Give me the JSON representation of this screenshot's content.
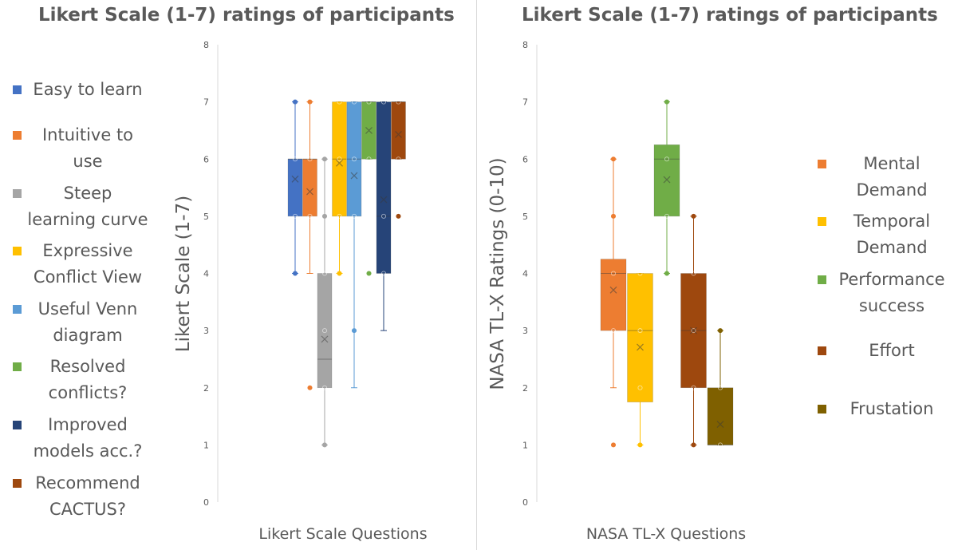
{
  "chart_data": [
    {
      "type": "box",
      "title": "Likert Scale (1-7) ratings of participants",
      "xlabel": "Likert Scale Questions",
      "ylabel": "Likert Scale (1-7)",
      "ylim": [
        0,
        8
      ],
      "yticks": [
        "0",
        "1",
        "2",
        "3",
        "4",
        "5",
        "6",
        "7",
        "8"
      ],
      "legend_position": "left",
      "series": [
        {
          "name": "Easy to learn",
          "color": "#4472C4",
          "q1": 5,
          "median": 6,
          "q3": 6,
          "whisker_low": 4,
          "whisker_high": 7,
          "mean": 5.65,
          "points": [
            4,
            5,
            6,
            7
          ]
        },
        {
          "name": "Intuitive to use",
          "color": "#ED7D31",
          "q1": 5,
          "median": 6,
          "q3": 6,
          "whisker_low": 4,
          "whisker_high": 7,
          "mean": 5.43,
          "points": [
            2,
            5,
            6,
            7
          ]
        },
        {
          "name": "Steep learning curve",
          "color": "#A5A5A5",
          "q1": 2,
          "median": 2.5,
          "q3": 4,
          "whisker_low": 1,
          "whisker_high": 6,
          "mean": 2.85,
          "points": [
            1,
            2,
            3,
            4,
            5,
            6
          ]
        },
        {
          "name": "Expressive Conflict View",
          "color": "#FFC000",
          "q1": 5,
          "median": 6,
          "q3": 7,
          "whisker_low": 4,
          "whisker_high": 7,
          "mean": 5.93,
          "points": [
            4,
            5,
            6,
            7
          ]
        },
        {
          "name": "Useful Venn diagram",
          "color": "#5B9BD5",
          "q1": 5,
          "median": 6,
          "q3": 7,
          "whisker_low": 2,
          "whisker_high": 7,
          "mean": 5.71,
          "points": [
            3,
            5,
            6,
            7
          ]
        },
        {
          "name": "Resolved conflicts?",
          "color": "#70AD47",
          "q1": 6,
          "median": 7,
          "q3": 7,
          "whisker_low": 6,
          "whisker_high": 7,
          "mean": 6.5,
          "points": [
            4,
            6,
            7
          ]
        },
        {
          "name": "Improved models acc.?",
          "color": "#264478",
          "q1": 4,
          "median": 5,
          "q3": 7,
          "whisker_low": 3,
          "whisker_high": 7,
          "mean": 5.29,
          "points": [
            4,
            5,
            7
          ]
        },
        {
          "name": "Recommend CACTUS?",
          "color": "#9E480E",
          "q1": 6,
          "median": 7,
          "q3": 7,
          "whisker_low": 6,
          "whisker_high": 7,
          "mean": 6.43,
          "points": [
            5,
            6,
            7
          ]
        }
      ]
    },
    {
      "type": "box",
      "title": "Likert Scale (1-7) ratings of participants",
      "xlabel": "NASA TL-X Questions",
      "ylabel": "NASA TL-X Ratings (0-10)",
      "ylim": [
        0,
        8
      ],
      "yticks": [
        "0",
        "1",
        "2",
        "3",
        "4",
        "5",
        "6",
        "7",
        "8"
      ],
      "legend_position": "right",
      "series": [
        {
          "name": "Mental Demand",
          "color": "#ED7D31",
          "q1": 3,
          "median": 4,
          "q3": 4.25,
          "whisker_low": 2,
          "whisker_high": 6,
          "mean": 3.71,
          "points": [
            1,
            3,
            4,
            5,
            6
          ]
        },
        {
          "name": "Temporal Demand",
          "color": "#FFC000",
          "q1": 1.75,
          "median": 3,
          "q3": 4,
          "whisker_low": 1,
          "whisker_high": 4,
          "mean": 2.71,
          "points": [
            1,
            2,
            3,
            4
          ]
        },
        {
          "name": "Performance success",
          "color": "#70AD47",
          "q1": 5,
          "median": 6,
          "q3": 6.25,
          "whisker_low": 4,
          "whisker_high": 7,
          "mean": 5.64,
          "points": [
            4,
            5,
            6,
            7
          ]
        },
        {
          "name": "Effort",
          "color": "#9E480E",
          "q1": 2,
          "median": 3,
          "q3": 4,
          "whisker_low": 1,
          "whisker_high": 5,
          "mean": 3.0,
          "points": [
            1,
            2,
            3,
            4,
            5
          ]
        },
        {
          "name": "Frustation",
          "color": "#7F6000",
          "q1": 1,
          "median": 1,
          "q3": 2,
          "whisker_low": 1,
          "whisker_high": 3,
          "mean": 1.36,
          "points": [
            1,
            2,
            3
          ]
        }
      ]
    }
  ]
}
